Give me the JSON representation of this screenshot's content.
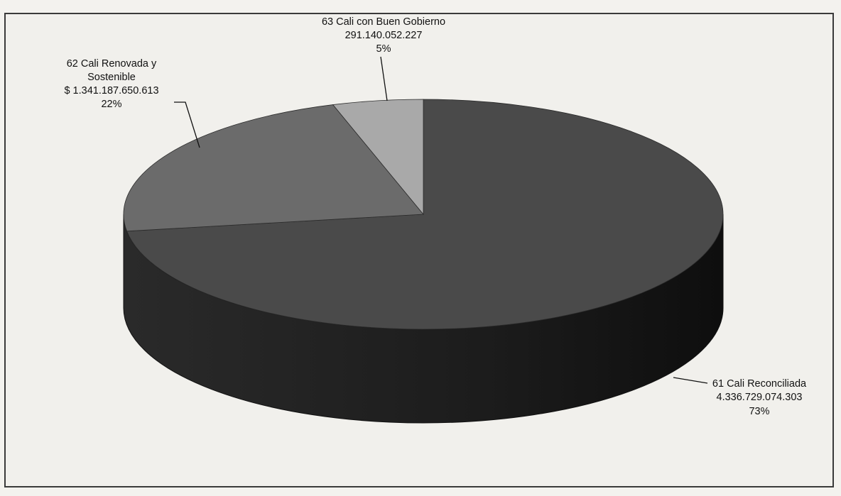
{
  "header_fragment": "",
  "chart_data": {
    "type": "pie",
    "title": "",
    "currency_symbol": "$",
    "slices": [
      {
        "name": "61 Cali Reconciliada",
        "value_label": "4.336.729.074.303",
        "value": 4336729074303,
        "percent": 73,
        "percent_label": "73%",
        "color": "#4a4a4a"
      },
      {
        "name": "62 Cali Renovada y Sostenible",
        "name_line1": "62 Cali Renovada y",
        "name_line2": "Sostenible",
        "value_label": "$ 1.341.187.650.613",
        "value": 1341187650613,
        "percent": 22,
        "percent_label": "22%",
        "color": "#6b6b6b"
      },
      {
        "name": "63 Cali con Buen Gobierno",
        "value_label": "291.140.052.227",
        "value": 291140052227,
        "percent": 5,
        "percent_label": "5%",
        "color": "#a9a9a9"
      }
    ]
  }
}
